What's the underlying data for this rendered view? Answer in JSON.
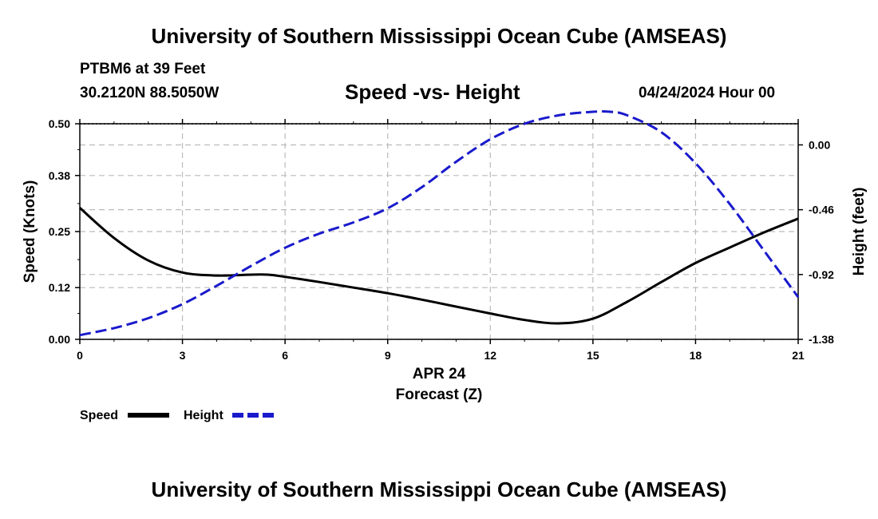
{
  "header": {
    "title": "University of Southern Mississippi Ocean Cube (AMSEAS)",
    "station": "PTBM6 at 39 Feet",
    "coords": "30.2120N  88.5050W",
    "datetime": "04/24/2024 Hour 00"
  },
  "footer": {
    "title": "University of Southern Mississippi Ocean Cube (AMSEAS)"
  },
  "colors": {
    "speed": "#000000",
    "height": "#1a1acc",
    "grid": "#bbbbbb"
  },
  "chart_data": {
    "type": "line",
    "title": "Speed -vs- Height",
    "xlabel": "Forecast (Z)",
    "date_label": "APR 24",
    "ylabel": "Speed (Knots)",
    "y2label": "Height (feet)",
    "xlim": [
      0,
      21
    ],
    "ylim": [
      0,
      0.5
    ],
    "y2lim": [
      -1.38,
      0.15
    ],
    "x_ticks": [
      "0",
      "3",
      "6",
      "9",
      "12",
      "15",
      "18",
      "21"
    ],
    "y_ticks": [
      "0.00",
      "0.12",
      "0.25",
      "0.38",
      "0.50"
    ],
    "y2_ticks": [
      "-1.38",
      "-0.92",
      "-0.46",
      "0.00"
    ],
    "grid": true,
    "legend_position": "bottom-left",
    "series": [
      {
        "name": "Speed",
        "axis": "left",
        "style": "solid",
        "x": [
          0,
          1,
          2,
          3,
          4,
          5,
          5.5,
          6,
          7,
          8,
          9,
          10,
          11,
          12,
          13,
          14,
          15,
          16,
          17,
          18,
          19,
          20,
          21
        ],
        "values": [
          0.305,
          0.235,
          0.183,
          0.155,
          0.148,
          0.15,
          0.15,
          0.145,
          0.133,
          0.12,
          0.107,
          0.092,
          0.076,
          0.06,
          0.045,
          0.037,
          0.048,
          0.087,
          0.133,
          0.177,
          0.213,
          0.248,
          0.28
        ]
      },
      {
        "name": "Height",
        "axis": "right",
        "style": "dashed",
        "x": [
          0,
          1,
          2,
          3,
          4,
          5,
          6,
          7,
          8,
          9,
          10,
          11,
          12,
          13,
          14,
          15,
          15.5,
          16,
          17,
          18,
          19,
          20,
          21
        ],
        "values": [
          -1.35,
          -1.3,
          -1.23,
          -1.13,
          -1.0,
          -0.86,
          -0.73,
          -0.63,
          -0.55,
          -0.45,
          -0.3,
          -0.12,
          0.04,
          0.15,
          0.21,
          0.235,
          0.235,
          0.21,
          0.09,
          -0.13,
          -0.42,
          -0.75,
          -1.08
        ]
      }
    ]
  }
}
